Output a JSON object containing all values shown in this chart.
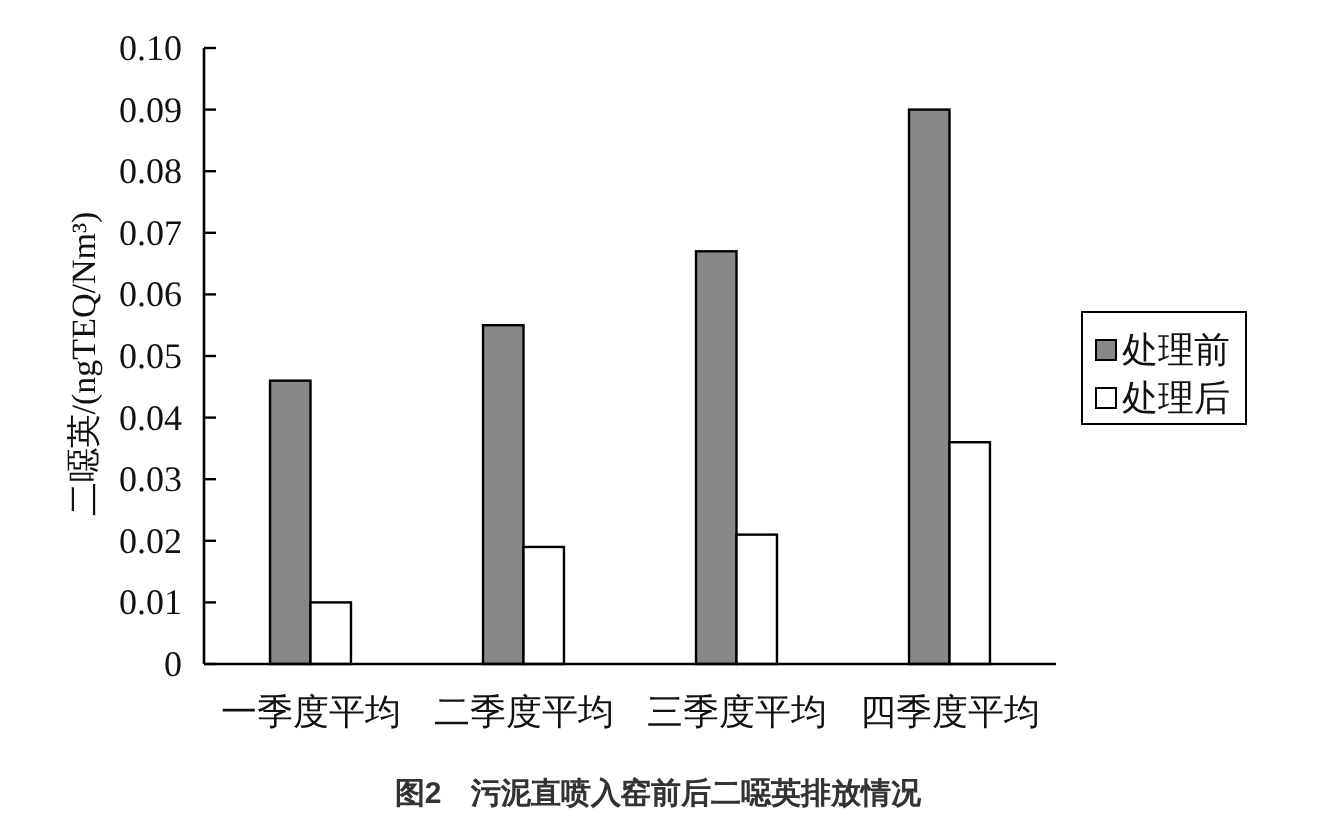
{
  "chart_data": {
    "type": "bar",
    "title": "图2　污泥直喷入窑前后二噁英排放情况",
    "ylabel": "二噁英/(ngTEQ/Nm³)",
    "categories": [
      "一季度平均",
      "二季度平均",
      "三季度平均",
      "四季度平均"
    ],
    "series": [
      {
        "name": "处理前",
        "color": "#888888",
        "values": [
          0.046,
          0.055,
          0.067,
          0.09
        ]
      },
      {
        "name": "处理后",
        "color": "#ffffff",
        "values": [
          0.01,
          0.019,
          0.021,
          0.036
        ]
      }
    ],
    "ylim": [
      0,
      0.1
    ],
    "yticks": [
      0,
      0.01,
      0.02,
      0.03,
      0.04,
      0.05,
      0.06,
      0.07,
      0.08,
      0.09,
      {
        "value": 0.1,
        "label": "0.10"
      }
    ],
    "legend": "right"
  }
}
